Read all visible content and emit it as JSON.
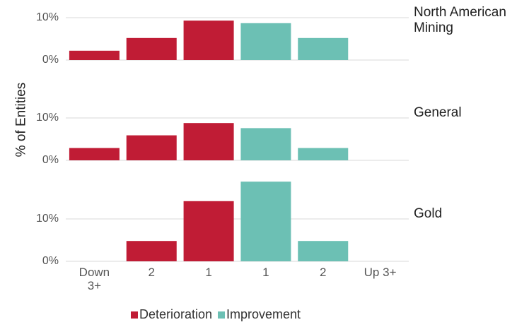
{
  "chart_data": {
    "type": "bar",
    "ylabel": "% of Entities",
    "categories": [
      "Down 3+",
      "2",
      "1",
      "1",
      "2",
      "Up 3+"
    ],
    "series": [
      {
        "name": "Deterioration",
        "color": "#c01c35"
      },
      {
        "name": "Improvement",
        "color": "#6cc0b4"
      }
    ],
    "panels": [
      {
        "title": "North American Mining",
        "ylim": [
          0,
          11
        ],
        "yticks": [
          {
            "value": 0,
            "label": "0%"
          },
          {
            "value": 10,
            "label": "10%"
          }
        ],
        "grid": true,
        "series": [
          {
            "values": [
              2.2,
              5.2,
              9.3,
              null,
              null,
              null
            ]
          },
          {
            "values": [
              null,
              null,
              null,
              8.7,
              5.2,
              0
            ]
          }
        ]
      },
      {
        "title": "General",
        "ylim": [
          0,
          11
        ],
        "yticks": [
          {
            "value": 0,
            "label": "0%"
          },
          {
            "value": 10,
            "label": "10%"
          }
        ],
        "grid": true,
        "series": [
          {
            "values": [
              2.9,
              5.9,
              8.8,
              null,
              null,
              null
            ]
          },
          {
            "values": [
              null,
              null,
              null,
              7.6,
              2.9,
              0
            ]
          }
        ]
      },
      {
        "title": "Gold",
        "ylim": [
          0,
          19
        ],
        "yticks": [
          {
            "value": 0,
            "label": "0%"
          },
          {
            "value": 10,
            "label": "10%"
          }
        ],
        "grid": true,
        "series": [
          {
            "values": [
              0,
              4.8,
              14.2,
              null,
              null,
              null
            ]
          },
          {
            "values": [
              null,
              null,
              null,
              18.8,
              4.8,
              0
            ]
          }
        ]
      }
    ]
  }
}
